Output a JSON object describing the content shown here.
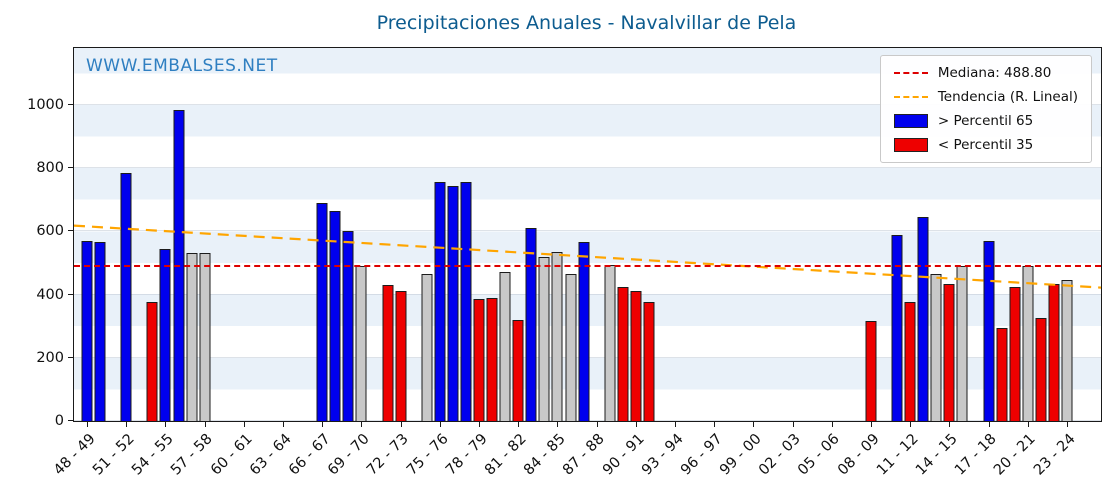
{
  "watermark": "WWW.EMBALSES.NET",
  "colors": {
    "high": "#0000ee",
    "low": "#ee0000",
    "mid": "#c8c8c8",
    "median_line": "#dd0000",
    "trend_line": "#ffa500",
    "title": "#0d5c8f",
    "watermark": "#2f7fc1"
  },
  "chart_data": {
    "type": "bar",
    "title": "Precipitaciones Anuales - Navalvillar de Pela",
    "xlabel": "",
    "ylabel": "",
    "ylim": [
      0,
      1180
    ],
    "yticks": [
      0,
      200,
      400,
      600,
      800,
      1000
    ],
    "grid": true,
    "legend_position": "upper right",
    "legend": {
      "median": "Mediana: 488.80",
      "trend": "Tendencia (R. Lineal)",
      "high": "> Percentil 65",
      "low": "< Percentil 35"
    },
    "median": 488.8,
    "trend": {
      "start_value": 618,
      "end_value": 422
    },
    "n_slots": 76,
    "x_tick_labels": [
      {
        "i": 0,
        "label": "48 - 49"
      },
      {
        "i": 3,
        "label": "51 - 52"
      },
      {
        "i": 6,
        "label": "54 - 55"
      },
      {
        "i": 9,
        "label": "57 - 58"
      },
      {
        "i": 12,
        "label": "60 - 61"
      },
      {
        "i": 15,
        "label": "63 - 64"
      },
      {
        "i": 18,
        "label": "66 - 67"
      },
      {
        "i": 21,
        "label": "69 - 70"
      },
      {
        "i": 24,
        "label": "72 - 73"
      },
      {
        "i": 27,
        "label": "75 - 76"
      },
      {
        "i": 30,
        "label": "78 - 79"
      },
      {
        "i": 33,
        "label": "81 - 82"
      },
      {
        "i": 36,
        "label": "84 - 85"
      },
      {
        "i": 39,
        "label": "87 - 88"
      },
      {
        "i": 42,
        "label": "90 - 91"
      },
      {
        "i": 45,
        "label": "93 - 94"
      },
      {
        "i": 48,
        "label": "96 - 97"
      },
      {
        "i": 51,
        "label": "99 - 00"
      },
      {
        "i": 54,
        "label": "02 - 03"
      },
      {
        "i": 57,
        "label": "05 - 06"
      },
      {
        "i": 60,
        "label": "08 - 09"
      },
      {
        "i": 63,
        "label": "11 - 12"
      },
      {
        "i": 66,
        "label": "14 - 15"
      },
      {
        "i": 69,
        "label": "17 - 18"
      },
      {
        "i": 72,
        "label": "20 - 21"
      },
      {
        "i": 75,
        "label": "23 - 24"
      }
    ],
    "bars": [
      {
        "i": 0,
        "season": "48 - 49",
        "value": 570,
        "cat": "high"
      },
      {
        "i": 1,
        "season": "49 - 50",
        "value": 565,
        "cat": "high"
      },
      {
        "i": 3,
        "season": "51 - 52",
        "value": 785,
        "cat": "high"
      },
      {
        "i": 5,
        "season": "53 - 54",
        "value": 375,
        "cat": "low"
      },
      {
        "i": 6,
        "season": "54 - 55",
        "value": 545,
        "cat": "high"
      },
      {
        "i": 7,
        "season": "55 - 56",
        "value": 985,
        "cat": "high"
      },
      {
        "i": 8,
        "season": "56 - 57",
        "value": 530,
        "cat": "mid"
      },
      {
        "i": 9,
        "season": "57 - 58",
        "value": 530,
        "cat": "mid"
      },
      {
        "i": 18,
        "season": "66 - 67",
        "value": 690,
        "cat": "high"
      },
      {
        "i": 19,
        "season": "67 - 68",
        "value": 665,
        "cat": "high"
      },
      {
        "i": 20,
        "season": "68 - 69",
        "value": 600,
        "cat": "high"
      },
      {
        "i": 21,
        "season": "69 - 70",
        "value": 490,
        "cat": "mid"
      },
      {
        "i": 23,
        "season": "71 - 72",
        "value": 430,
        "cat": "low"
      },
      {
        "i": 24,
        "season": "72 - 73",
        "value": 410,
        "cat": "low"
      },
      {
        "i": 26,
        "season": "74 - 75",
        "value": 465,
        "cat": "mid"
      },
      {
        "i": 27,
        "season": "75 - 76",
        "value": 755,
        "cat": "high"
      },
      {
        "i": 28,
        "season": "76 - 77",
        "value": 745,
        "cat": "high"
      },
      {
        "i": 29,
        "season": "77 - 78",
        "value": 755,
        "cat": "high"
      },
      {
        "i": 30,
        "season": "78 - 79",
        "value": 385,
        "cat": "low"
      },
      {
        "i": 31,
        "season": "79 - 80",
        "value": 390,
        "cat": "low"
      },
      {
        "i": 32,
        "season": "80 - 81",
        "value": 470,
        "cat": "mid"
      },
      {
        "i": 33,
        "season": "81 - 82",
        "value": 320,
        "cat": "low"
      },
      {
        "i": 34,
        "season": "82 - 83",
        "value": 610,
        "cat": "high"
      },
      {
        "i": 35,
        "season": "83 - 84",
        "value": 520,
        "cat": "mid"
      },
      {
        "i": 36,
        "season": "84 - 85",
        "value": 535,
        "cat": "mid"
      },
      {
        "i": 37,
        "season": "85 - 86",
        "value": 465,
        "cat": "mid"
      },
      {
        "i": 38,
        "season": "86 - 87",
        "value": 565,
        "cat": "high"
      },
      {
        "i": 40,
        "season": "88 - 89",
        "value": 495,
        "cat": "mid"
      },
      {
        "i": 41,
        "season": "89 - 90",
        "value": 425,
        "cat": "low"
      },
      {
        "i": 42,
        "season": "90 - 91",
        "value": 410,
        "cat": "low"
      },
      {
        "i": 43,
        "season": "91 - 92",
        "value": 375,
        "cat": "low"
      },
      {
        "i": 60,
        "season": "08 - 09",
        "value": 315,
        "cat": "low"
      },
      {
        "i": 62,
        "season": "10 - 11",
        "value": 590,
        "cat": "high"
      },
      {
        "i": 63,
        "season": "11 - 12",
        "value": 375,
        "cat": "low"
      },
      {
        "i": 64,
        "season": "12 - 13",
        "value": 645,
        "cat": "high"
      },
      {
        "i": 65,
        "season": "13 - 14",
        "value": 465,
        "cat": "mid"
      },
      {
        "i": 66,
        "season": "14 - 15",
        "value": 435,
        "cat": "low"
      },
      {
        "i": 67,
        "season": "15 - 16",
        "value": 490,
        "cat": "mid"
      },
      {
        "i": 69,
        "season": "17 - 18",
        "value": 570,
        "cat": "high"
      },
      {
        "i": 70,
        "season": "18 - 19",
        "value": 295,
        "cat": "low"
      },
      {
        "i": 71,
        "season": "19 - 20",
        "value": 425,
        "cat": "low"
      },
      {
        "i": 72,
        "season": "20 - 21",
        "value": 490,
        "cat": "mid"
      },
      {
        "i": 73,
        "season": "21 - 22",
        "value": 325,
        "cat": "low"
      },
      {
        "i": 74,
        "season": "22 - 23",
        "value": 435,
        "cat": "low"
      },
      {
        "i": 75,
        "season": "23 - 24",
        "value": 445,
        "cat": "mid"
      }
    ]
  }
}
